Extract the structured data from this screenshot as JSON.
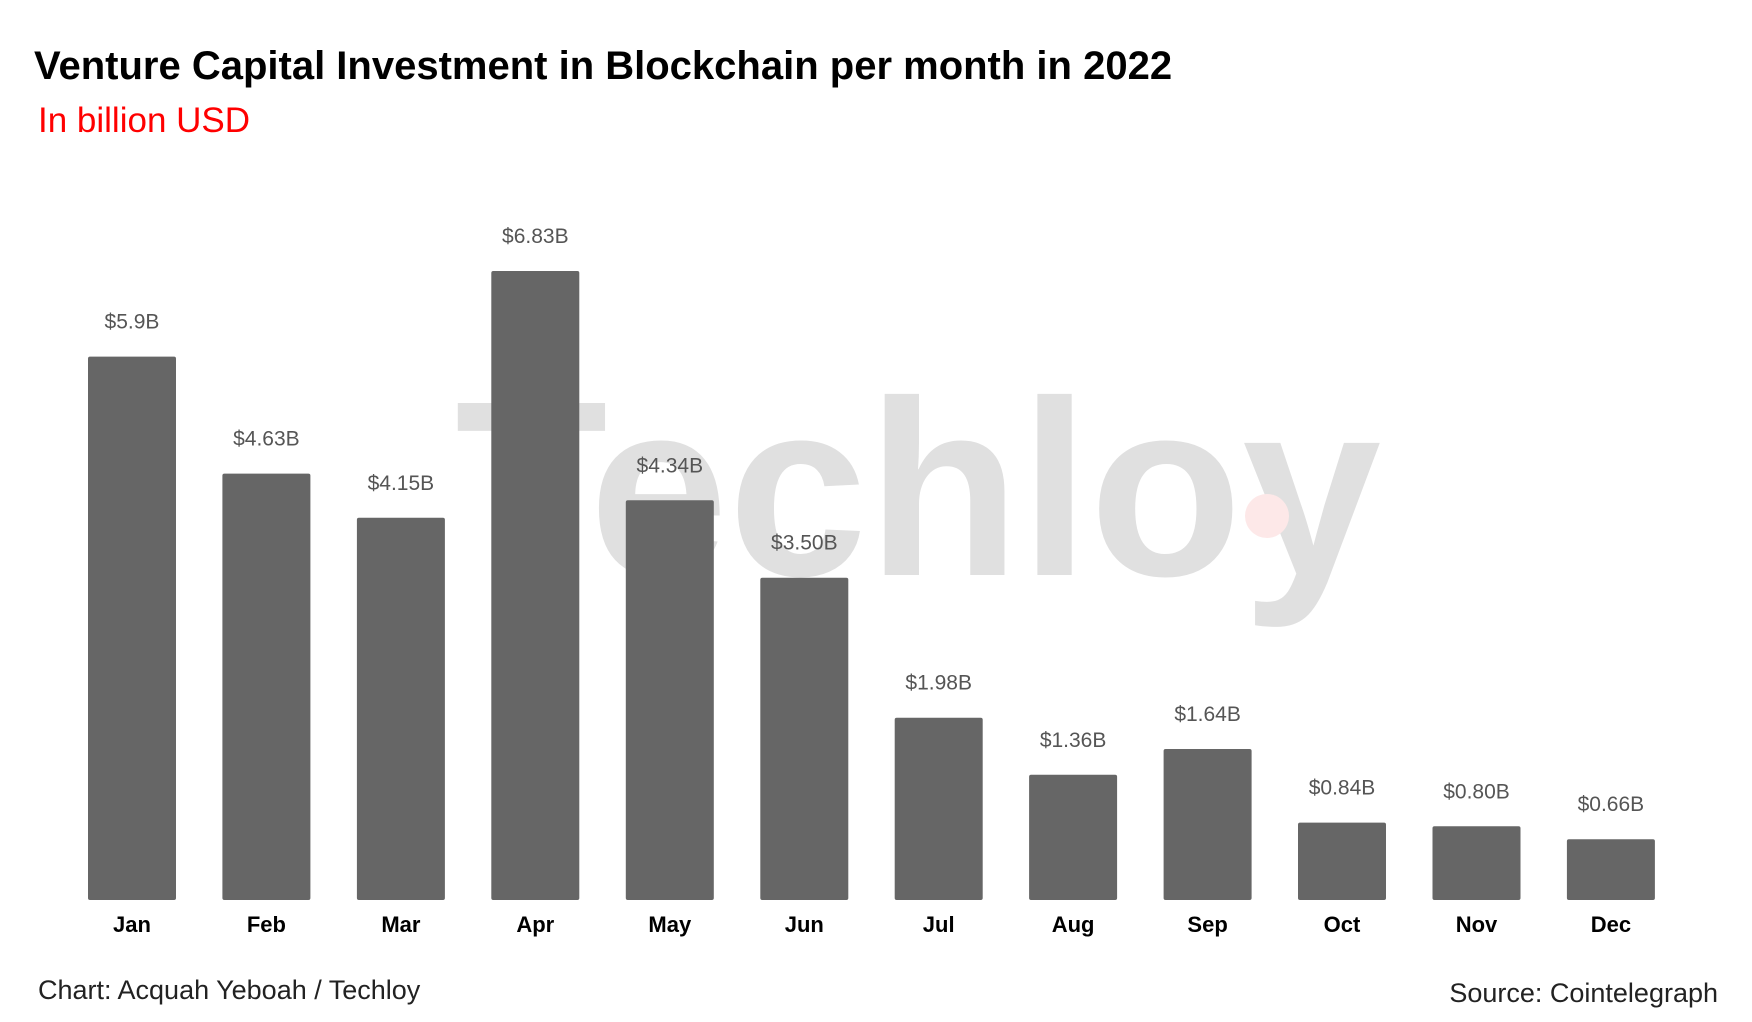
{
  "chart_data": {
    "type": "bar",
    "title": "Venture Capital Investment in Blockchain per month in 2022",
    "subtitle": "In billion USD",
    "xlabel": "",
    "ylabel": "",
    "unit": "billion USD",
    "ylim": [
      0,
      6.83
    ],
    "categories": [
      "Jan",
      "Feb",
      "Mar",
      "Apr",
      "May",
      "Jun",
      "Jul",
      "Aug",
      "Sep",
      "Oct",
      "Nov",
      "Dec"
    ],
    "values": [
      5.9,
      4.63,
      4.15,
      6.83,
      4.34,
      3.5,
      1.98,
      1.36,
      1.64,
      0.84,
      0.8,
      0.66
    ],
    "value_labels": [
      "$5.9B",
      "$4.63B",
      "$4.15B",
      "$6.83B",
      "$4.34B",
      "$3.50B",
      "$1.98B",
      "$1.36B",
      "$1.64B",
      "$0.84B",
      "$0.80B",
      "$0.66B"
    ],
    "grid": false,
    "legend": "none"
  },
  "footer": {
    "credit": "Chart: Acquah Yeboah / Techloy",
    "source": "Source: Cointelegraph"
  },
  "watermark": {
    "text": "Techloy",
    "dot_text": "."
  },
  "colors": {
    "bar": "#666666",
    "value_label": "#555555",
    "category_label": "#000000",
    "subtitle": "#ff0000",
    "watermark": "#e0e0e0",
    "watermark_dot": "#fde8e8"
  }
}
